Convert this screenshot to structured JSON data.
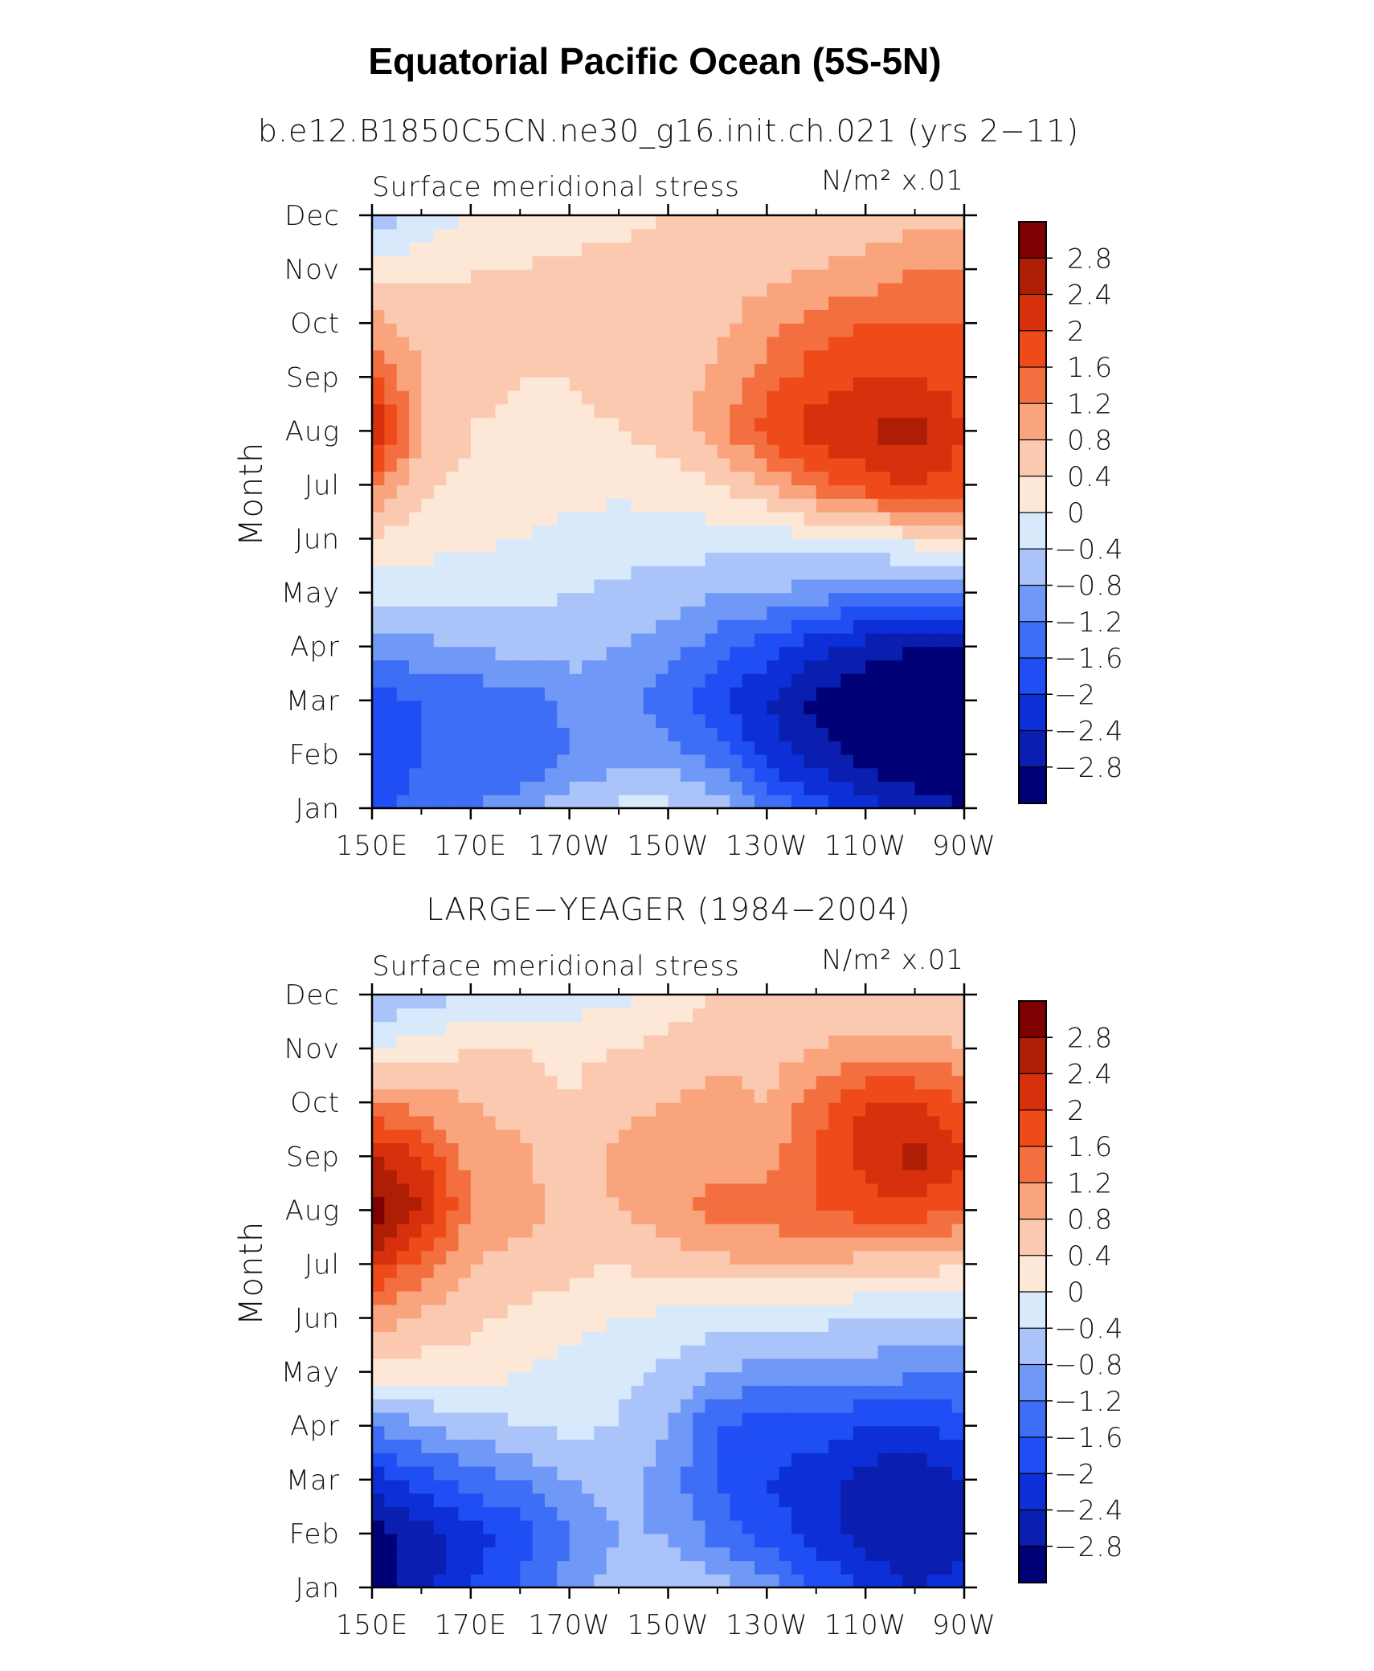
{
  "figure": {
    "title": "Equatorial Pacific Ocean (5S-5N)",
    "panel_titles": [
      "b.e12.B1850C5CN.ne30_g16.init.ch.021 (yrs 2−11)",
      "LARGE−YEAGER (1984−2004)"
    ],
    "variable_label": "Surface meridional stress",
    "units_label": "N/m² x.01",
    "ylabel": "Month"
  },
  "chart_data": [
    {
      "type": "heatmap",
      "title": "b.e12.B1850C5CN.ne30_g16.init.ch.021 (yrs 2−11)",
      "variable": "Surface meridional stress",
      "units": "N/m² x.01",
      "ylabel": "Month",
      "x_tick_labels": [
        "150E",
        "170E",
        "170W",
        "150W",
        "130W",
        "110W",
        "90W"
      ],
      "x_ticks_deg_east": [
        150,
        170,
        190,
        210,
        230,
        250,
        270
      ],
      "y_tick_labels": [
        "Jan",
        "Feb",
        "Mar",
        "Apr",
        "May",
        "Jun",
        "Jul",
        "Aug",
        "Sep",
        "Oct",
        "Nov",
        "Dec"
      ],
      "x_deg_east": [
        150,
        160,
        170,
        180,
        190,
        200,
        210,
        220,
        230,
        240,
        250,
        260,
        270
      ],
      "months": [
        "Jan",
        "Feb",
        "Mar",
        "Apr",
        "May",
        "Jun",
        "Jul",
        "Aug",
        "Sep",
        "Oct",
        "Nov",
        "Dec"
      ],
      "values": [
        [
          -1.8,
          -1.4,
          -1.2,
          -1.0,
          -0.5,
          -0.3,
          -0.3,
          -0.6,
          -1.2,
          -1.8,
          -2.2,
          -2.6,
          -2.8
        ],
        [
          -2.0,
          -1.6,
          -1.6,
          -1.6,
          -1.2,
          -1.0,
          -1.0,
          -1.4,
          -2.2,
          -2.6,
          -3.0,
          -3.2,
          -3.2
        ],
        [
          -1.8,
          -1.6,
          -1.5,
          -1.4,
          -1.1,
          -1.0,
          -1.4,
          -2.0,
          -2.4,
          -2.9,
          -3.2,
          -3.2,
          -3.2
        ],
        [
          -1.0,
          -0.9,
          -0.8,
          -0.6,
          -0.6,
          -0.8,
          -1.0,
          -1.4,
          -1.8,
          -2.2,
          -2.6,
          -2.8,
          -2.9
        ],
        [
          -0.2,
          -0.3,
          -0.3,
          -0.3,
          -0.4,
          -0.5,
          -0.6,
          -0.8,
          -0.8,
          -1.0,
          -1.2,
          -1.3,
          -1.4
        ],
        [
          0.3,
          0.2,
          0.1,
          0.0,
          -0.1,
          -0.2,
          -0.2,
          -0.2,
          -0.2,
          -0.1,
          0.0,
          0.2,
          0.3
        ],
        [
          1.3,
          0.5,
          0.3,
          0.2,
          0.1,
          0.1,
          0.2,
          0.4,
          0.8,
          1.4,
          1.8,
          2.0,
          1.8
        ],
        [
          2.6,
          0.8,
          0.4,
          0.3,
          0.3,
          0.4,
          0.6,
          1.0,
          1.8,
          2.2,
          2.4,
          2.6,
          2.0
        ],
        [
          1.6,
          0.8,
          0.5,
          0.4,
          0.4,
          0.5,
          0.6,
          0.9,
          1.4,
          1.8,
          2.0,
          2.0,
          1.8
        ],
        [
          1.0,
          0.6,
          0.4,
          0.4,
          0.4,
          0.5,
          0.6,
          0.7,
          1.0,
          1.4,
          1.6,
          1.6,
          1.6
        ],
        [
          0.1,
          0.3,
          0.4,
          0.4,
          0.5,
          0.5,
          0.6,
          0.7,
          0.7,
          0.8,
          0.9,
          1.2,
          1.2
        ],
        [
          -0.6,
          -0.3,
          0.0,
          0.1,
          0.2,
          0.3,
          0.4,
          0.5,
          0.5,
          0.6,
          0.6,
          0.6,
          0.7
        ]
      ],
      "contour_levels": [
        -2.8,
        -2.4,
        -2.0,
        -1.6,
        -1.2,
        -0.8,
        -0.4,
        0,
        0.4,
        0.8,
        1.2,
        1.6,
        2.0,
        2.4,
        2.8
      ],
      "colorbar_labels": [
        "2.8",
        "2.4",
        "2",
        "1.6",
        "1.2",
        "0.8",
        "0.4",
        "0",
        "−0.4",
        "−0.8",
        "−1.2",
        "−1.6",
        "−2",
        "−2.4",
        "−2.8"
      ]
    },
    {
      "type": "heatmap",
      "title": "LARGE−YEAGER (1984−2004)",
      "variable": "Surface meridional stress",
      "units": "N/m² x.01",
      "ylabel": "Month",
      "x_tick_labels": [
        "150E",
        "170E",
        "170W",
        "150W",
        "130W",
        "110W",
        "90W"
      ],
      "x_ticks_deg_east": [
        150,
        170,
        190,
        210,
        230,
        250,
        270
      ],
      "y_tick_labels": [
        "Jan",
        "Feb",
        "Mar",
        "Apr",
        "May",
        "Jun",
        "Jul",
        "Aug",
        "Sep",
        "Oct",
        "Nov",
        "Dec"
      ],
      "x_deg_east": [
        150,
        160,
        170,
        180,
        190,
        200,
        210,
        220,
        230,
        240,
        250,
        260,
        270
      ],
      "months": [
        "Jan",
        "Feb",
        "Mar",
        "Apr",
        "May",
        "Jun",
        "Jul",
        "Aug",
        "Sep",
        "Oct",
        "Nov",
        "Dec"
      ],
      "values": [
        [
          -3.0,
          -2.6,
          -2.0,
          -1.6,
          -1.0,
          -0.6,
          -0.4,
          -0.6,
          -1.0,
          -1.6,
          -2.0,
          -2.4,
          -2.2
        ],
        [
          -3.0,
          -2.6,
          -2.2,
          -1.8,
          -1.2,
          -0.8,
          -0.8,
          -1.4,
          -1.8,
          -2.2,
          -2.6,
          -2.8,
          -2.6
        ],
        [
          -2.2,
          -1.8,
          -1.4,
          -1.2,
          -0.8,
          -0.6,
          -1.0,
          -1.6,
          -2.0,
          -2.2,
          -2.6,
          -2.8,
          -2.4
        ],
        [
          -1.2,
          -0.8,
          -0.6,
          -0.4,
          -0.3,
          -0.4,
          -0.8,
          -1.6,
          -1.8,
          -1.8,
          -2.0,
          -2.0,
          -1.8
        ],
        [
          0.2,
          0.2,
          0.3,
          0.0,
          -0.2,
          -0.3,
          -0.5,
          -0.8,
          -1.0,
          -1.0,
          -1.0,
          -1.1,
          -1.2
        ],
        [
          1.0,
          0.7,
          0.5,
          0.3,
          0.2,
          0.0,
          -0.1,
          -0.2,
          -0.3,
          -0.3,
          -0.4,
          -0.5,
          -0.4
        ],
        [
          2.2,
          1.4,
          0.8,
          0.6,
          0.5,
          0.4,
          0.6,
          0.7,
          0.8,
          0.8,
          0.6,
          0.6,
          0.4
        ],
        [
          3.0,
          2.4,
          1.2,
          1.0,
          0.6,
          0.8,
          1.0,
          1.4,
          1.4,
          1.6,
          1.8,
          1.8,
          1.6
        ],
        [
          2.4,
          2.0,
          1.0,
          0.9,
          0.5,
          0.9,
          1.0,
          1.0,
          1.0,
          1.6,
          2.2,
          2.6,
          2.0
        ],
        [
          1.2,
          1.0,
          0.8,
          0.6,
          0.4,
          0.7,
          0.8,
          1.0,
          0.8,
          1.4,
          2.0,
          2.0,
          1.6
        ],
        [
          0.0,
          0.2,
          0.4,
          0.4,
          0.3,
          0.4,
          0.5,
          0.6,
          0.6,
          0.8,
          1.0,
          1.0,
          0.8
        ],
        [
          -0.8,
          -0.6,
          -0.4,
          -0.4,
          -0.2,
          -0.2,
          0.2,
          0.4,
          0.4,
          0.5,
          0.4,
          0.4,
          0.4
        ]
      ],
      "contour_levels": [
        -2.8,
        -2.4,
        -2.0,
        -1.6,
        -1.2,
        -0.8,
        -0.4,
        0,
        0.4,
        0.8,
        1.2,
        1.6,
        2.0,
        2.4,
        2.8
      ],
      "colorbar_labels": [
        "2.8",
        "2.4",
        "2",
        "1.6",
        "1.2",
        "0.8",
        "0.4",
        "0",
        "−0.4",
        "−0.8",
        "−1.2",
        "−1.6",
        "−2",
        "−2.4",
        "−2.8"
      ]
    }
  ],
  "colors": {
    "bins": [
      "#000077",
      "#0a1fb0",
      "#0d2fd8",
      "#1f4ef5",
      "#3d6ef5",
      "#7098f7",
      "#aac4fa",
      "#d9e9fc",
      "#fde8d8",
      "#fbc9b0",
      "#f9a47c",
      "#f46f3f",
      "#ee4a1a",
      "#d7300c",
      "#ae1e04",
      "#7f0000"
    ]
  }
}
